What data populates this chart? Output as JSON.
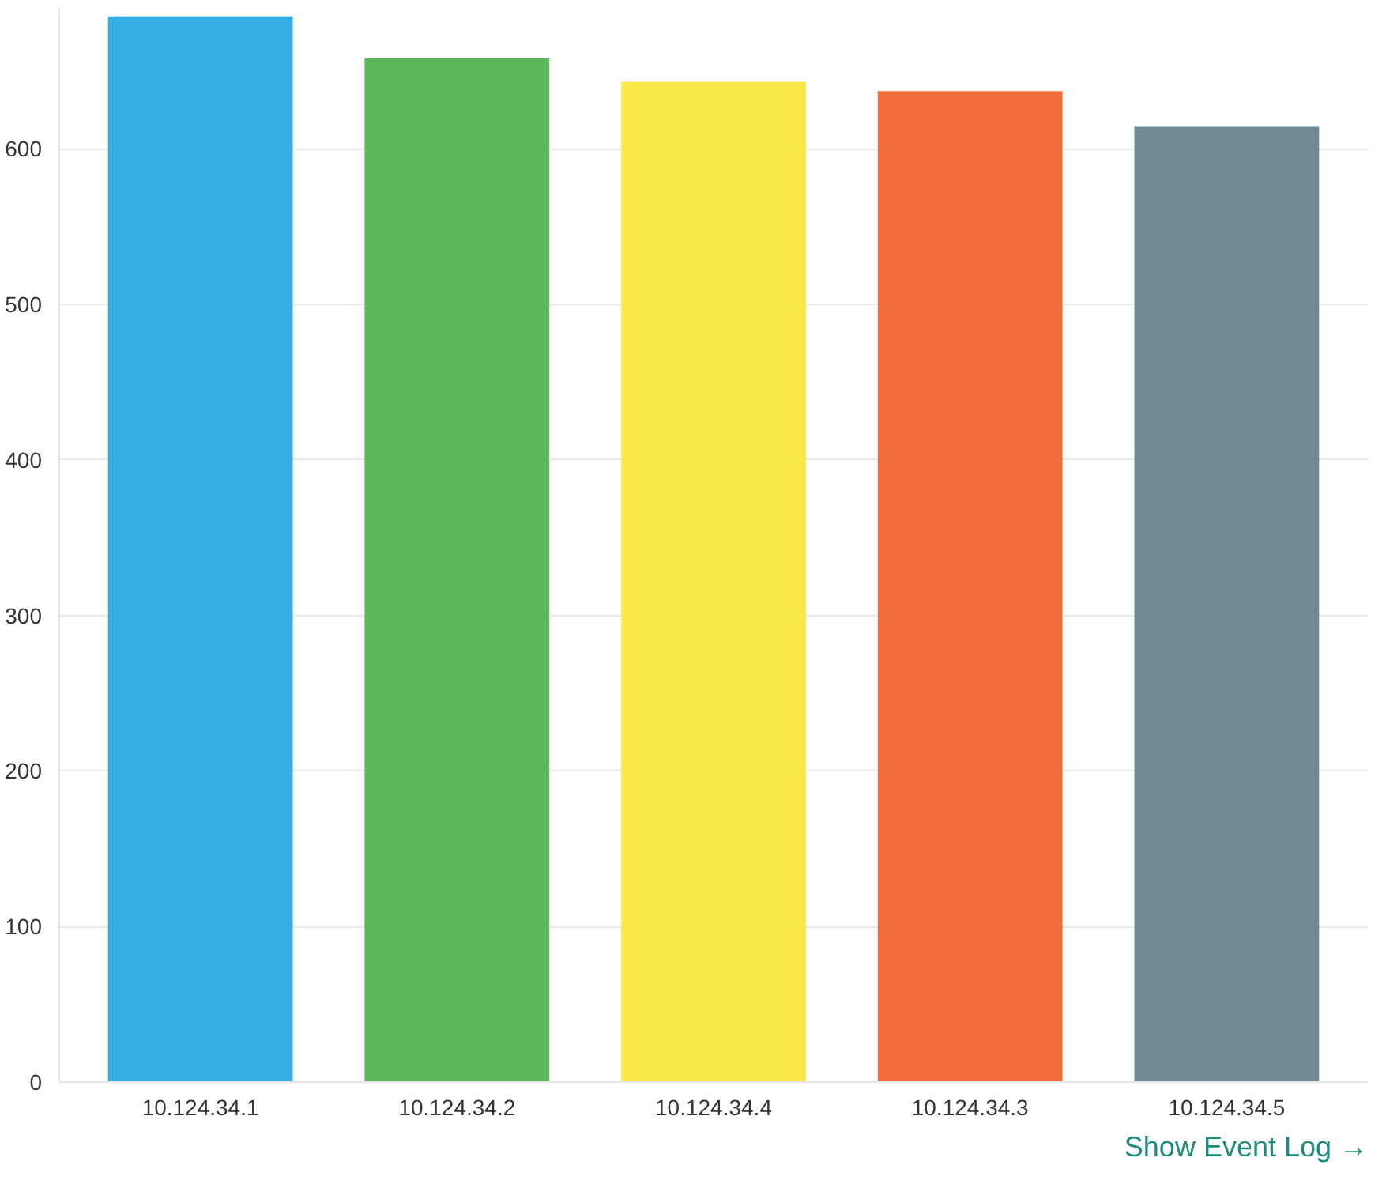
{
  "chart_data": {
    "type": "bar",
    "categories": [
      "10.124.34.1",
      "10.124.34.2",
      "10.124.34.4",
      "10.124.34.3",
      "10.124.34.5"
    ],
    "values": [
      685,
      658,
      643,
      637,
      614
    ],
    "colors": [
      "#35aee6",
      "#5cb85c",
      "#f9e84a",
      "#f26b3a",
      "#708a96"
    ],
    "ylim": [
      0,
      690
    ],
    "yticks": [
      0,
      100,
      200,
      300,
      400,
      500,
      600
    ],
    "grid": "y",
    "annotations": [
      "Show Event Log →"
    ]
  }
}
